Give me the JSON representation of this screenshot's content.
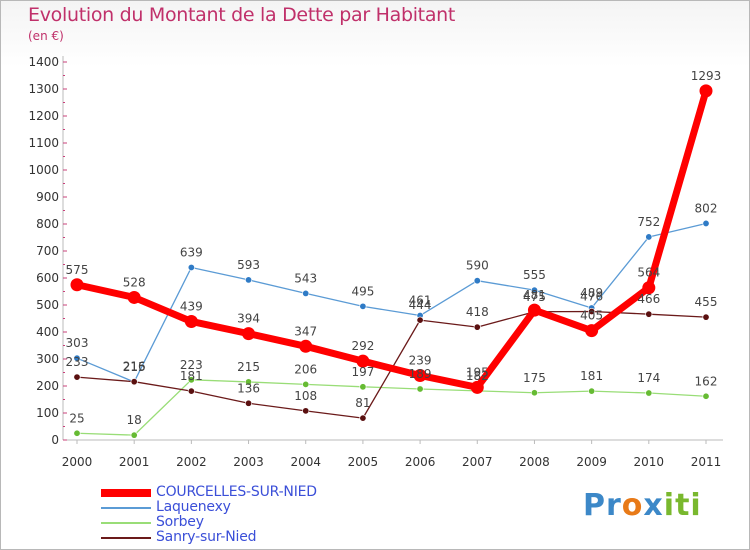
{
  "title": "Evolution du Montant de la Dette par Habitant",
  "subtitle": "(en €)",
  "logo_text": "Proxiti",
  "chart_data": {
    "type": "line",
    "x": [
      "2000",
      "2001",
      "2002",
      "2003",
      "2004",
      "2005",
      "2006",
      "2007",
      "2008",
      "2009",
      "2010",
      "2011"
    ],
    "ylim": [
      0,
      1400
    ],
    "yticks": [
      0,
      100,
      200,
      300,
      400,
      500,
      600,
      700,
      800,
      900,
      1000,
      1100,
      1200,
      1300,
      1400
    ],
    "grid": false,
    "legend_position": "bottom-left",
    "series": [
      {
        "name": "COURCELLES-SUR-NIED",
        "color": "#ff0000",
        "values": [
          575,
          528,
          439,
          394,
          347,
          292,
          239,
          195,
          481,
          405,
          564,
          1293
        ]
      },
      {
        "name": "Laquenexy",
        "color": "#5b9bd5",
        "values": [
          303,
          215,
          639,
          593,
          543,
          495,
          461,
          590,
          555,
          489,
          752,
          802
        ]
      },
      {
        "name": "Sorbey",
        "color": "#99dd77",
        "values": [
          25,
          18,
          223,
          215,
          206,
          197,
          189,
          182,
          175,
          181,
          174,
          162
        ]
      },
      {
        "name": "Sanry-sur-Nied",
        "color": "#6b1a1a",
        "values": [
          233,
          216,
          181,
          136,
          108,
          81,
          444,
          418,
          475,
          476,
          466,
          455
        ]
      }
    ]
  }
}
